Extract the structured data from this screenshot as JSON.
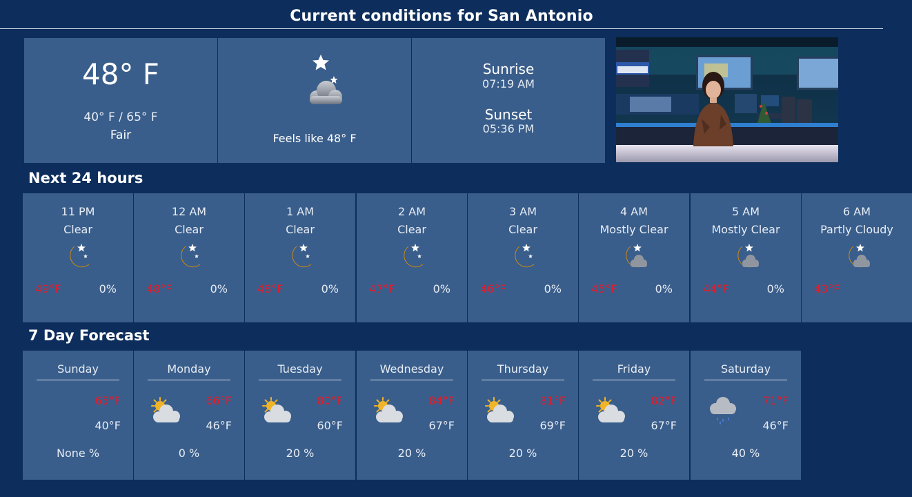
{
  "header": {
    "title": "Current conditions for San Antonio"
  },
  "current": {
    "temperature": "48° F",
    "range": "40° F / 65° F",
    "condition": "Fair",
    "feels_like": "Feels like 48° F",
    "icon": "moon-cloud-icon",
    "sunrise_label": "Sunrise",
    "sunrise_time": "07:19 AM",
    "sunset_label": "Sunset",
    "sunset_time": "05:36 PM"
  },
  "video": {
    "icon": "weather-presenter-video"
  },
  "hourly": {
    "title": "Next 24 hours",
    "items": [
      {
        "time": "11 PM",
        "condition": "Clear",
        "temp": "49°F",
        "precip": "0%",
        "icon": "moon-icon"
      },
      {
        "time": "12 AM",
        "condition": "Clear",
        "temp": "48°F",
        "precip": "0%",
        "icon": "moon-icon"
      },
      {
        "time": "1 AM",
        "condition": "Clear",
        "temp": "48°F",
        "precip": "0%",
        "icon": "moon-icon"
      },
      {
        "time": "2 AM",
        "condition": "Clear",
        "temp": "47°F",
        "precip": "0%",
        "icon": "moon-icon"
      },
      {
        "time": "3 AM",
        "condition": "Clear",
        "temp": "46°F",
        "precip": "0%",
        "icon": "moon-icon"
      },
      {
        "time": "4 AM",
        "condition": "Mostly Clear",
        "temp": "45°F",
        "precip": "0%",
        "icon": "moon-cloud-icon"
      },
      {
        "time": "5 AM",
        "condition": "Mostly Clear",
        "temp": "44°F",
        "precip": "0%",
        "icon": "moon-cloud-icon"
      },
      {
        "time": "6 AM",
        "condition": "Partly Cloudy",
        "temp": "43°F",
        "precip": "",
        "icon": "moon-cloud-icon"
      }
    ]
  },
  "daily": {
    "title": "7 Day Forecast",
    "items": [
      {
        "day": "Sunday",
        "high": "65°F",
        "low": "40°F",
        "precip": "None %",
        "icon": ""
      },
      {
        "day": "Monday",
        "high": "66°F",
        "low": "46°F",
        "precip": "0 %",
        "icon": "partly-cloudy-icon"
      },
      {
        "day": "Tuesday",
        "high": "80°F",
        "low": "60°F",
        "precip": "20 %",
        "icon": "partly-cloudy-icon"
      },
      {
        "day": "Wednesday",
        "high": "84°F",
        "low": "67°F",
        "precip": "20 %",
        "icon": "partly-cloudy-icon"
      },
      {
        "day": "Thursday",
        "high": "81°F",
        "low": "69°F",
        "precip": "20 %",
        "icon": "partly-cloudy-icon"
      },
      {
        "day": "Friday",
        "high": "82°F",
        "low": "67°F",
        "precip": "20 %",
        "icon": "partly-cloudy-icon"
      },
      {
        "day": "Saturday",
        "high": "71°F",
        "low": "46°F",
        "precip": "40 %",
        "icon": "rain-cloud-icon"
      }
    ]
  },
  "colors": {
    "background": "#0d2e5c",
    "panel": "#3a5e8b",
    "high_temp": "#e21d2c",
    "text": "#ffffff"
  }
}
